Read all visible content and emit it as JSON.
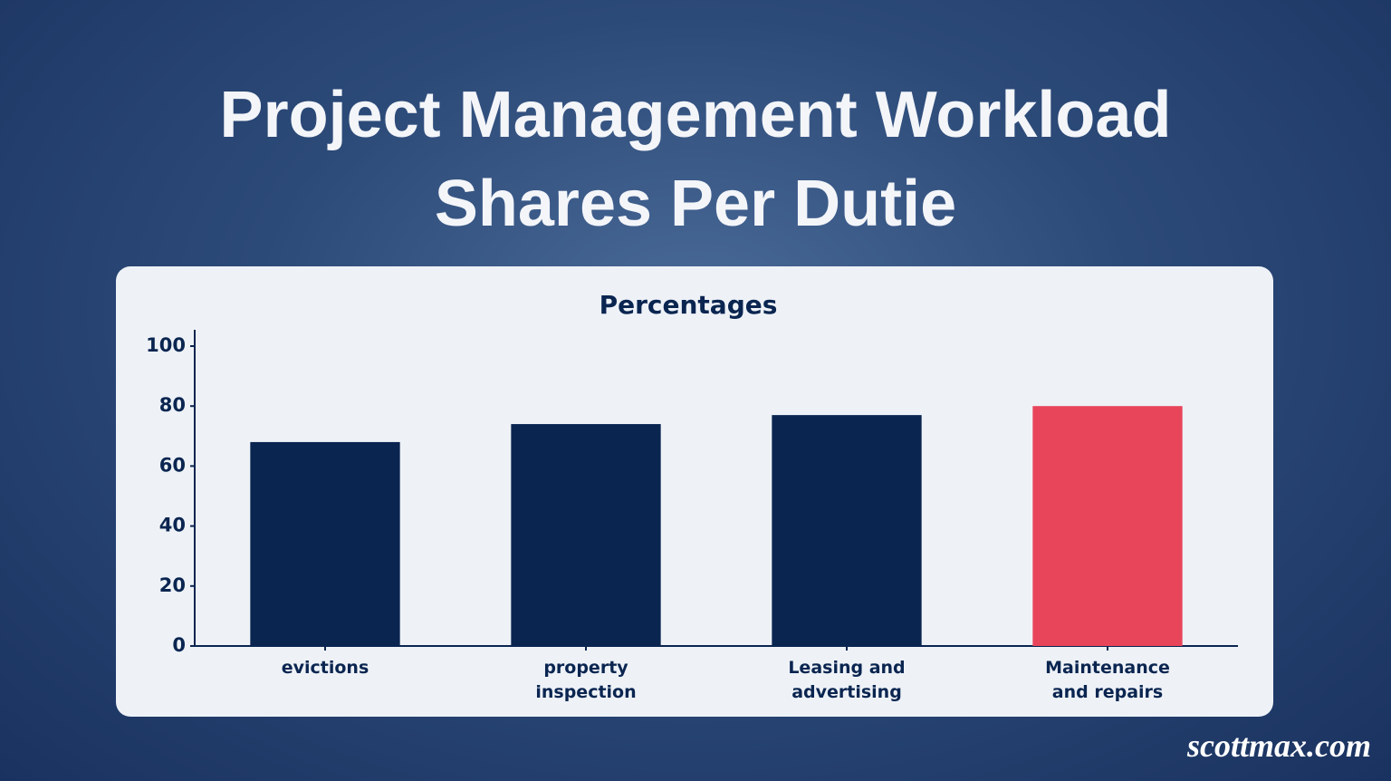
{
  "title": "Project Management Workload Shares Per Dutie",
  "watermark": "scottmax.com",
  "chart_data": {
    "type": "bar",
    "title": "Percentages",
    "categories": [
      "evictions",
      "property inspection",
      "Leasing and advertising",
      "Maintenance and repairs"
    ],
    "values": [
      68,
      74,
      77,
      80
    ],
    "colors": [
      "#0a2550",
      "#0a2550",
      "#0a2550",
      "#e8455a"
    ],
    "ylim": [
      0,
      100
    ],
    "yticks": [
      0,
      20,
      40,
      60,
      80,
      100
    ],
    "grid": false
  }
}
